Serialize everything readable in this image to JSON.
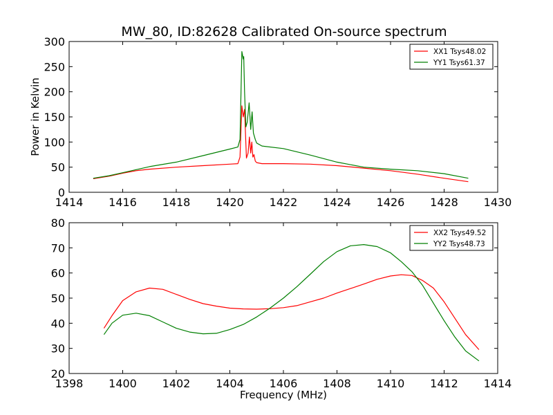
{
  "title": "MW_80, ID:82628 Calibrated On-source spectrum",
  "colors": {
    "red": "#ff0000",
    "green": "#007f00"
  },
  "chart_data": [
    {
      "type": "line",
      "title": "MW_80, ID:82628 Calibrated On-source spectrum",
      "xlabel": "",
      "ylabel": "Power in Kelvin",
      "xlim": [
        1414,
        1430
      ],
      "ylim": [
        0,
        300
      ],
      "xticks": [
        "1414",
        "1416",
        "1418",
        "1420",
        "1422",
        "1424",
        "1426",
        "1428",
        "1430"
      ],
      "yticks": [
        "0",
        "50",
        "100",
        "150",
        "200",
        "250",
        "300"
      ],
      "legend_position": "top-right",
      "grid": false,
      "series": [
        {
          "name": "XX1 Tsys48.02",
          "color": "#ff0000",
          "x": [
            1414.9,
            1415.5,
            1416.0,
            1416.5,
            1417.0,
            1418.0,
            1419.0,
            1420.0,
            1420.3,
            1420.38,
            1420.45,
            1420.5,
            1420.55,
            1420.62,
            1420.68,
            1420.73,
            1420.78,
            1420.82,
            1420.86,
            1420.9,
            1420.95,
            1421.0,
            1421.2,
            1422.0,
            1423.0,
            1424.0,
            1425.0,
            1426.0,
            1427.0,
            1428.0,
            1428.9
          ],
          "y": [
            27,
            32,
            38,
            43,
            46,
            50,
            53,
            56,
            57,
            70,
            172,
            150,
            165,
            68,
            78,
            110,
            78,
            100,
            70,
            75,
            62,
            59,
            57,
            57,
            56,
            53,
            48,
            43,
            36,
            28,
            21
          ]
        },
        {
          "name": "YY1 Tsys61.37",
          "color": "#007f00",
          "x": [
            1414.9,
            1415.5,
            1416.0,
            1416.5,
            1417.0,
            1418.0,
            1419.0,
            1420.0,
            1420.3,
            1420.38,
            1420.45,
            1420.5,
            1420.52,
            1420.55,
            1420.6,
            1420.65,
            1420.72,
            1420.78,
            1420.83,
            1420.88,
            1420.95,
            1421.0,
            1421.2,
            1422.0,
            1423.0,
            1424.0,
            1425.0,
            1426.0,
            1427.0,
            1428.0,
            1428.9
          ],
          "y": [
            28,
            33,
            39,
            45,
            51,
            60,
            73,
            86,
            90,
            105,
            280,
            265,
            270,
            200,
            130,
            140,
            178,
            125,
            160,
            118,
            105,
            98,
            92,
            87,
            74,
            60,
            50,
            46,
            43,
            37,
            28
          ]
        }
      ]
    },
    {
      "type": "line",
      "title": "",
      "xlabel": "Frequency (MHz)",
      "ylabel": "",
      "xlim": [
        1398,
        1414
      ],
      "ylim": [
        20,
        80
      ],
      "xticks": [
        "1398",
        "1400",
        "1402",
        "1404",
        "1406",
        "1408",
        "1410",
        "1412",
        "1414"
      ],
      "yticks": [
        "20",
        "30",
        "40",
        "50",
        "60",
        "70",
        "80"
      ],
      "legend_position": "top-right",
      "grid": false,
      "series": [
        {
          "name": "XX2 Tsys49.52",
          "color": "#ff0000",
          "x": [
            1399.3,
            1399.6,
            1400.0,
            1400.5,
            1401.0,
            1401.5,
            1402.0,
            1402.5,
            1403.0,
            1403.5,
            1404.0,
            1404.5,
            1405.0,
            1405.5,
            1406.0,
            1406.5,
            1407.0,
            1407.5,
            1408.0,
            1408.5,
            1409.0,
            1409.5,
            1410.0,
            1410.4,
            1410.8,
            1411.2,
            1411.6,
            1412.0,
            1412.4,
            1412.8,
            1413.3
          ],
          "y": [
            38,
            43,
            49,
            52.5,
            54,
            53.5,
            51.5,
            49.5,
            47.8,
            46.8,
            46,
            45.7,
            45.6,
            45.8,
            46.2,
            47,
            48.5,
            50,
            52,
            53.8,
            55.6,
            57.5,
            58.8,
            59.3,
            59,
            57,
            54,
            48.5,
            42,
            35.5,
            29.5
          ]
        },
        {
          "name": "YY2 Tsys48.73",
          "color": "#007f00",
          "x": [
            1399.3,
            1399.6,
            1400.0,
            1400.5,
            1401.0,
            1401.5,
            1402.0,
            1402.5,
            1403.0,
            1403.5,
            1404.0,
            1404.5,
            1405.0,
            1405.5,
            1406.0,
            1406.5,
            1407.0,
            1407.5,
            1408.0,
            1408.5,
            1409.0,
            1409.5,
            1410.0,
            1410.4,
            1410.8,
            1411.2,
            1411.6,
            1412.0,
            1412.4,
            1412.8,
            1413.3
          ],
          "y": [
            35.5,
            40,
            43.2,
            44,
            43,
            40.5,
            38,
            36.5,
            35.8,
            36,
            37.5,
            39.5,
            42.5,
            46,
            50,
            54.5,
            59.5,
            64.5,
            68.5,
            70.8,
            71.3,
            70.5,
            68,
            64.5,
            60.5,
            55,
            48,
            41,
            34.5,
            29,
            25
          ]
        }
      ]
    }
  ]
}
